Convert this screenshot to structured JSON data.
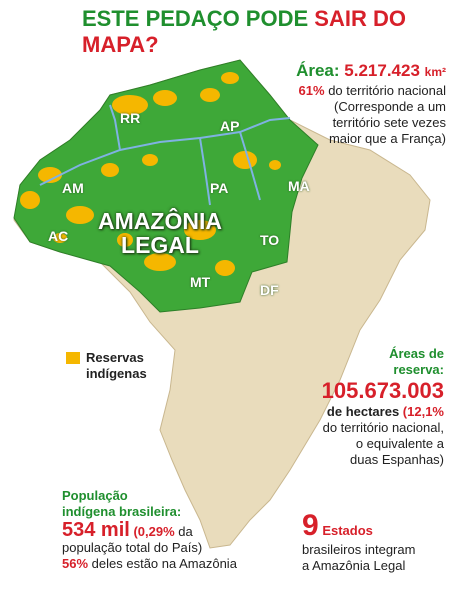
{
  "title": {
    "part1": "ESTE PEDAÇO PODE",
    "part2": "SAIR DO MAPA?"
  },
  "area": {
    "label": "Área:",
    "value": "5.217.423",
    "unit": "km²",
    "percent": "61%",
    "lines": [
      "do território nacional",
      "(Corresponde a um",
      "território sete vezes",
      "maior que a França)"
    ]
  },
  "states": [
    "RR",
    "AP",
    "AM",
    "PA",
    "MA",
    "AC",
    "TO",
    "MT",
    "DF"
  ],
  "region_label": [
    "AMAZÔNIA",
    "LEGAL"
  ],
  "legend": {
    "label": [
      "Reservas",
      "indígenas"
    ]
  },
  "reserves": {
    "title": [
      "Áreas de",
      "reserva:"
    ],
    "value": "105.673.003",
    "unit": "de hectares",
    "percent": "(12,1%",
    "lines": [
      "do território nacional,",
      "o equivalente a",
      "duas Espanhas)"
    ]
  },
  "population": {
    "title": [
      "População",
      "indígena brasileira:"
    ],
    "value": "534 mil",
    "percent": "(0,29%",
    "text": "da",
    "line2": "população total do País)",
    "percent2": "56%",
    "text2": "deles estão na Amazônia"
  },
  "states_count": {
    "value": "9",
    "label": "Estados",
    "lines": [
      "brasileiros integram",
      "a Amazônia Legal"
    ]
  }
}
